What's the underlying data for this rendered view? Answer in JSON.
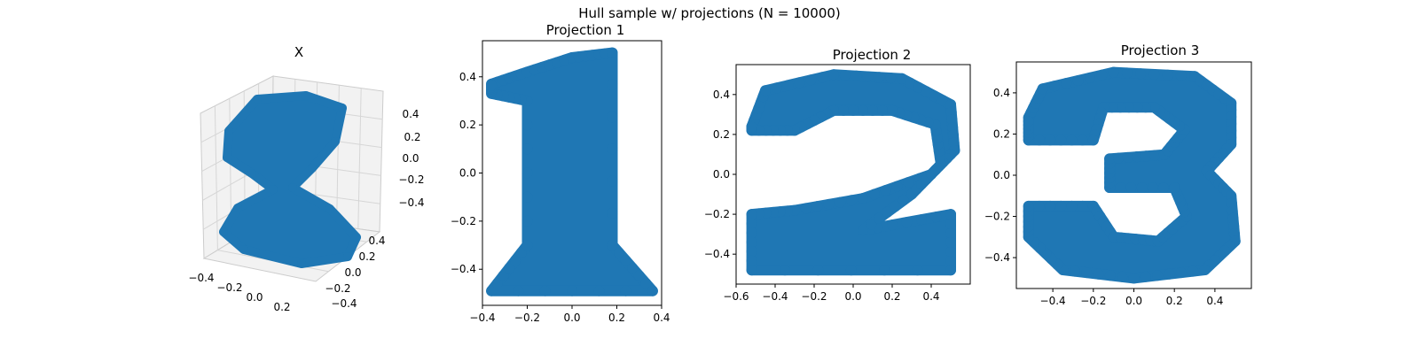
{
  "figure": {
    "suptitle": "Hull sample w/ projections (N = 10000)"
  },
  "colors": {
    "point": "#1f77b4",
    "axis": "#000000",
    "pane": "#f2f2f2",
    "grid": "#d6d6d6"
  },
  "chart_data": [
    {
      "type": "scatter",
      "projection": "3d",
      "title": "X",
      "n_points": 10000,
      "xticks": [
        "−0.4",
        "−0.2",
        "0.0",
        "0.2"
      ],
      "yticks": [
        "−0.4",
        "−0.2",
        "0.0",
        "0.2",
        "0.4"
      ],
      "zticks": [
        "−0.4",
        "−0.2",
        "0.0",
        "0.2",
        "0.4"
      ],
      "xlim": [
        -0.5,
        0.5
      ],
      "ylim": [
        -0.5,
        0.5
      ],
      "zlim": [
        -0.5,
        0.5
      ],
      "shape": "stacked hull of digits 1, 2 and 3"
    },
    {
      "type": "scatter",
      "title": "Projection 1",
      "shape": "digit 1",
      "xlim": [
        -0.4,
        0.4
      ],
      "ylim": [
        -0.55,
        0.55
      ],
      "xticks": [
        "−0.4",
        "−0.2",
        "0.0",
        "0.2",
        "0.4"
      ],
      "yticks": [
        "−0.4",
        "−0.2",
        "0.0",
        "0.2",
        "0.4"
      ],
      "xtick_values": [
        -0.4,
        -0.2,
        0.0,
        0.2,
        0.4
      ],
      "ytick_values": [
        -0.4,
        -0.2,
        0.0,
        0.2,
        0.4
      ],
      "outline": [
        [
          [
            -0.36,
            0.37
          ],
          [
            -0.2,
            0.42
          ],
          [
            0.0,
            0.48
          ],
          [
            0.18,
            0.5
          ],
          [
            0.18,
            -0.3
          ],
          [
            0.36,
            -0.49
          ],
          [
            -0.36,
            -0.49
          ],
          [
            -0.2,
            -0.3
          ],
          [
            -0.2,
            0.3
          ],
          [
            -0.36,
            0.33
          ]
        ]
      ]
    },
    {
      "type": "scatter",
      "title": "Projection 2",
      "shape": "digit 2",
      "xlim": [
        -0.6,
        0.6
      ],
      "ylim": [
        -0.55,
        0.55
      ],
      "xticks": [
        "−0.6",
        "−0.4",
        "−0.2",
        "0.0",
        "0.2",
        "0.4"
      ],
      "yticks": [
        "−0.4",
        "−0.2",
        "0.0",
        "0.2",
        "0.4"
      ],
      "xtick_values": [
        -0.6,
        -0.4,
        -0.2,
        0.0,
        0.2,
        0.4
      ],
      "ytick_values": [
        -0.4,
        -0.2,
        0.0,
        0.2,
        0.4
      ],
      "outline": [
        [
          [
            -0.52,
            0.24
          ],
          [
            -0.45,
            0.42
          ],
          [
            -0.1,
            0.5
          ],
          [
            0.25,
            0.48
          ],
          [
            0.5,
            0.35
          ],
          [
            0.52,
            0.12
          ],
          [
            0.4,
            0.0
          ],
          [
            0.05,
            -0.12
          ],
          [
            -0.3,
            -0.18
          ],
          [
            -0.52,
            -0.2
          ],
          [
            -0.52,
            -0.48
          ],
          [
            0.5,
            -0.48
          ],
          [
            0.5,
            -0.2
          ],
          [
            0.05,
            -0.28
          ],
          [
            0.3,
            -0.1
          ],
          [
            0.45,
            0.05
          ],
          [
            0.42,
            0.25
          ],
          [
            0.2,
            0.32
          ],
          [
            -0.1,
            0.32
          ],
          [
            -0.3,
            0.22
          ],
          [
            -0.52,
            0.22
          ]
        ]
      ]
    },
    {
      "type": "scatter",
      "title": "Projection 3",
      "shape": "digit 3",
      "xlim": [
        -0.58,
        0.58
      ],
      "ylim": [
        -0.55,
        0.55
      ],
      "xticks": [
        "−0.4",
        "−0.2",
        "0.0",
        "0.2",
        "0.4"
      ],
      "yticks": [
        "−0.4",
        "−0.2",
        "0.0",
        "0.2",
        "0.4"
      ],
      "xtick_values": [
        -0.4,
        -0.2,
        0.0,
        0.2,
        0.4
      ],
      "ytick_values": [
        -0.4,
        -0.2,
        0.0,
        0.2,
        0.4
      ],
      "outline": [
        [
          [
            -0.52,
            0.28
          ],
          [
            -0.45,
            0.42
          ],
          [
            -0.1,
            0.5
          ],
          [
            0.3,
            0.48
          ],
          [
            0.48,
            0.35
          ],
          [
            0.48,
            0.15
          ],
          [
            0.36,
            0.02
          ],
          [
            0.48,
            -0.1
          ],
          [
            0.5,
            -0.32
          ],
          [
            0.35,
            -0.46
          ],
          [
            0.0,
            -0.5
          ],
          [
            -0.35,
            -0.46
          ],
          [
            -0.52,
            -0.3
          ],
          [
            -0.52,
            -0.15
          ],
          [
            -0.2,
            -0.15
          ],
          [
            -0.1,
            -0.3
          ],
          [
            0.12,
            -0.32
          ],
          [
            0.26,
            -0.2
          ],
          [
            0.2,
            -0.06
          ],
          [
            -0.12,
            -0.06
          ],
          [
            -0.12,
            0.08
          ],
          [
            0.15,
            0.1
          ],
          [
            0.25,
            0.22
          ],
          [
            0.1,
            0.33
          ],
          [
            -0.15,
            0.33
          ],
          [
            -0.2,
            0.17
          ],
          [
            -0.52,
            0.17
          ]
        ]
      ]
    }
  ]
}
